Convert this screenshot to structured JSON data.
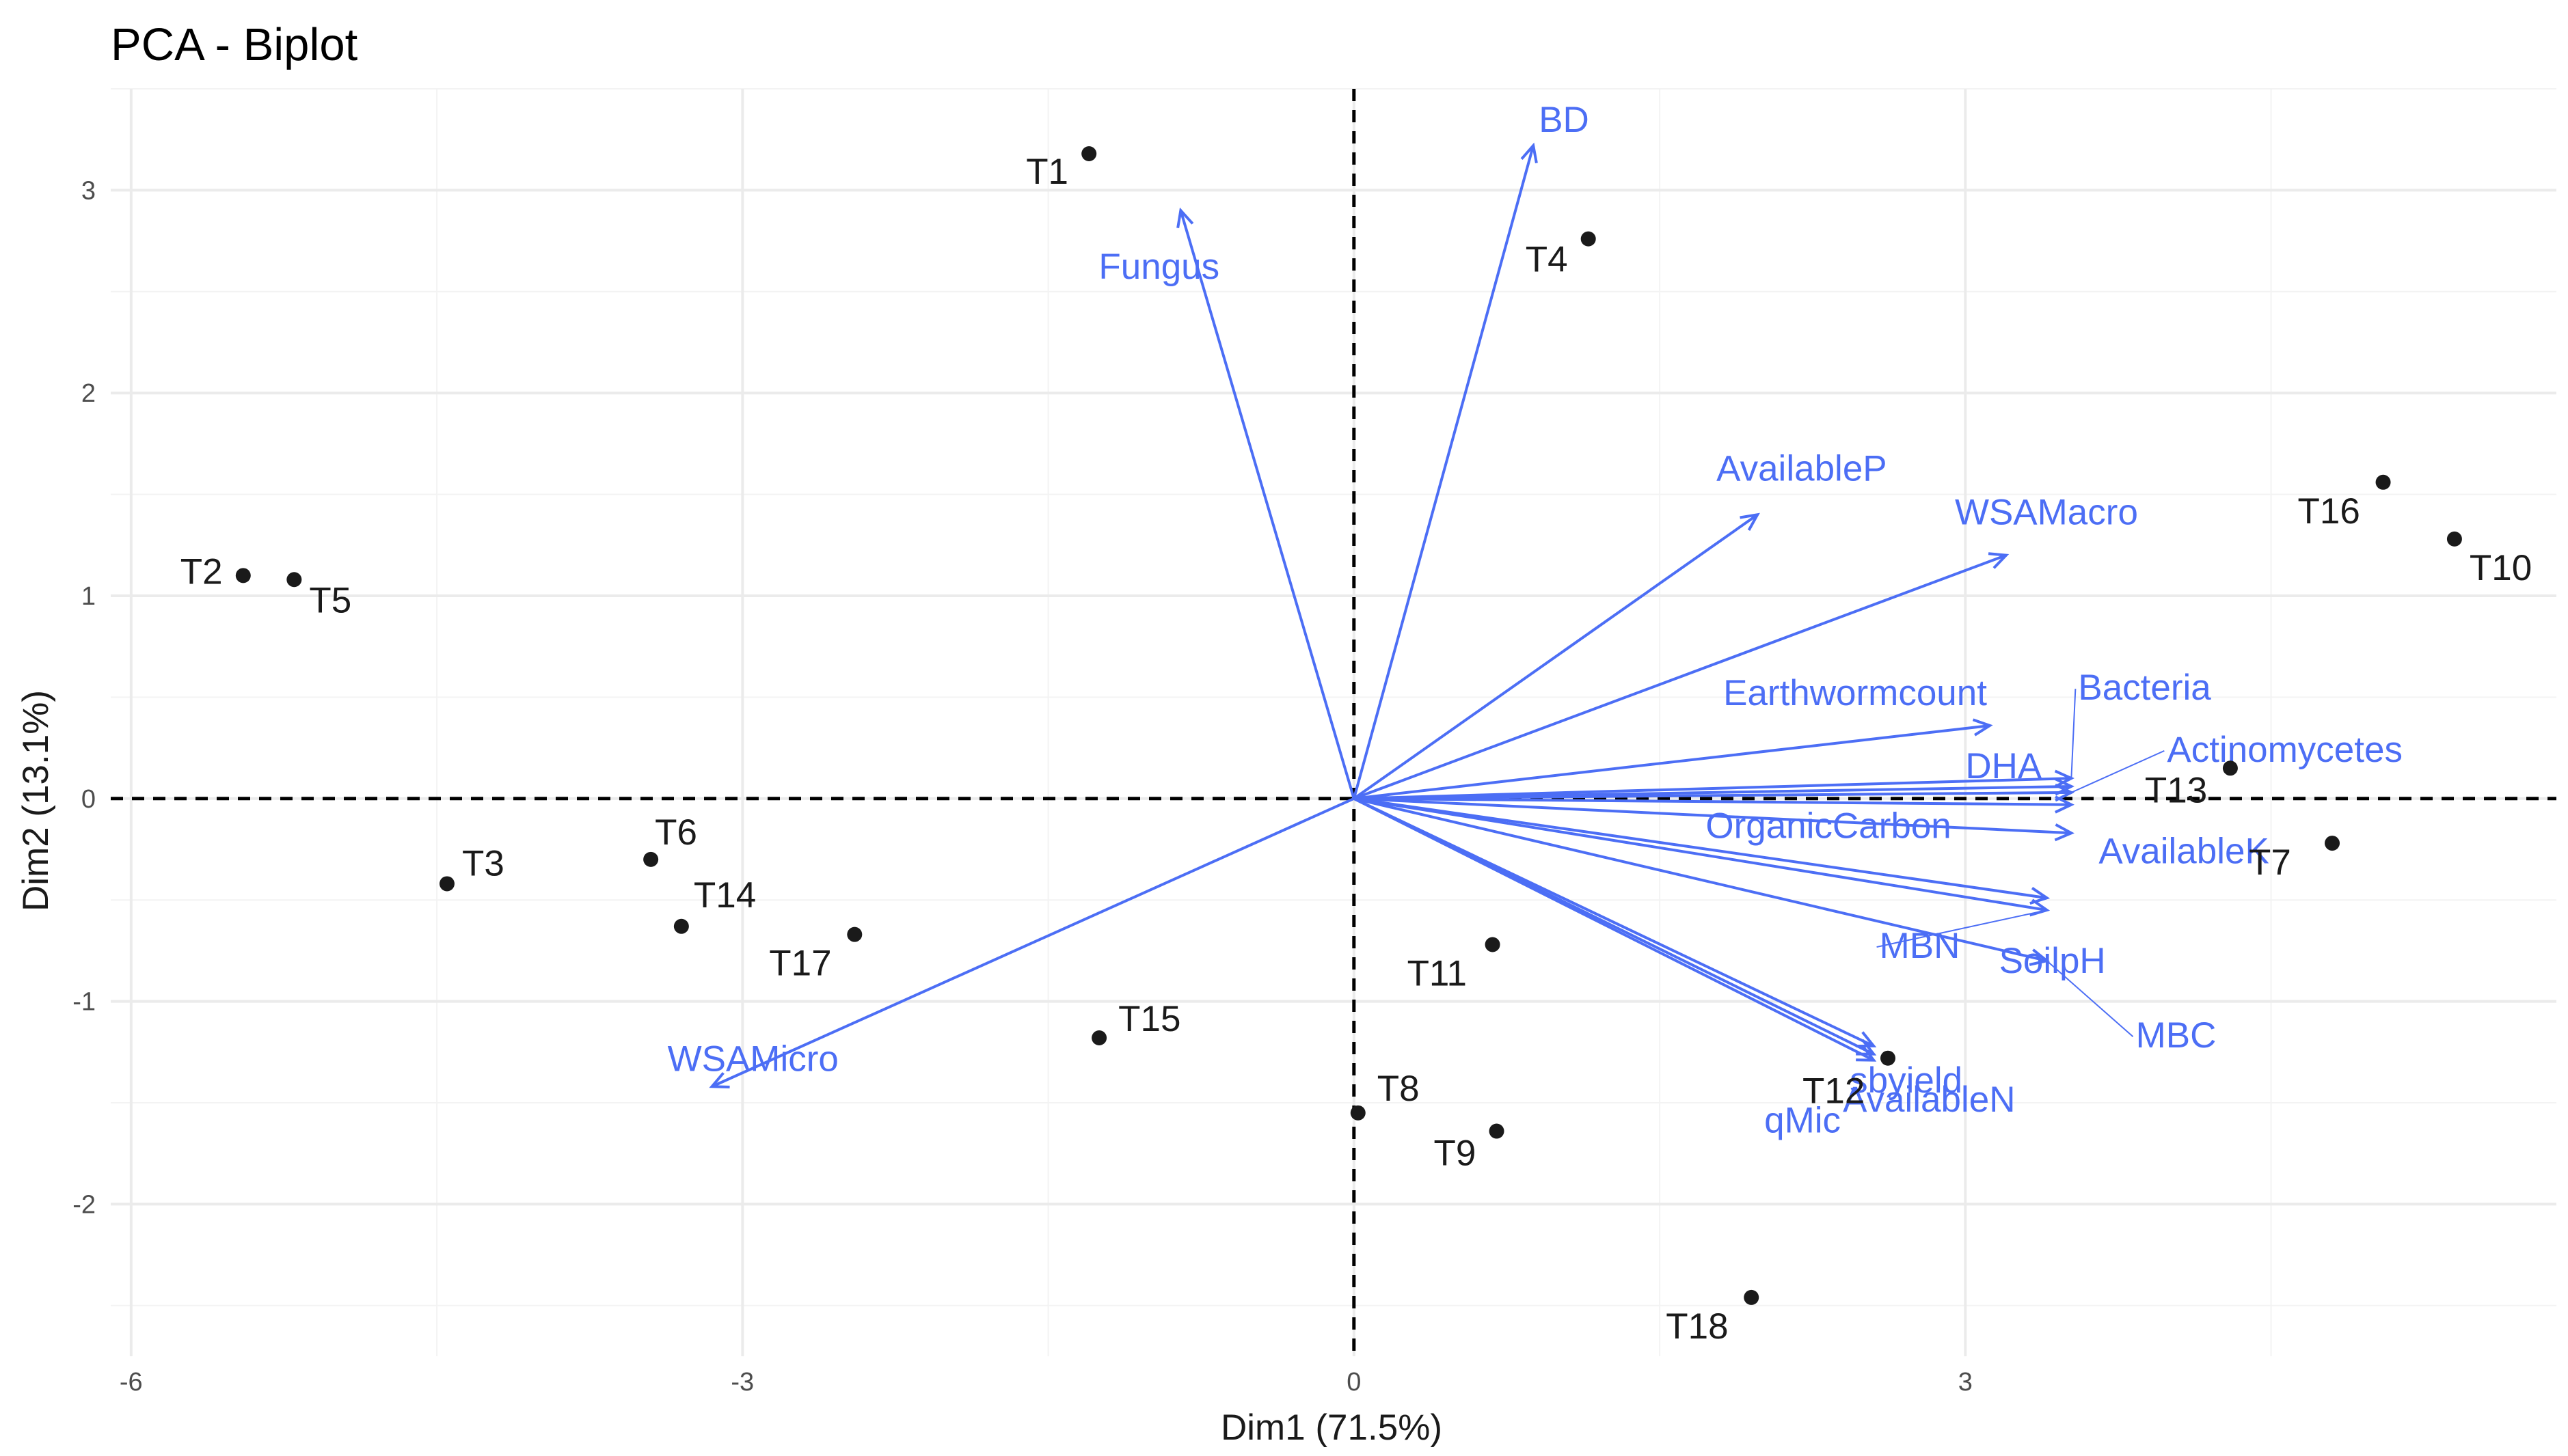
{
  "chart_data": {
    "type": "scatter",
    "title": "PCA - Biplot",
    "xlabel": "Dim1 (71.5%)",
    "ylabel": "Dim2 (13.1%)",
    "xlim": [
      -6.1,
      5.9
    ],
    "ylim": [
      -2.75,
      3.5
    ],
    "x_ticks": [
      -6,
      -3,
      0,
      3
    ],
    "y_ticks": [
      -2,
      -1,
      0,
      1,
      2,
      3
    ],
    "grid": true,
    "reference_lines": {
      "x": 0,
      "y": 0
    },
    "colors": {
      "observations": "#1a1a1a",
      "variables": "#4c6ef5"
    },
    "observations": [
      {
        "name": "T1",
        "x": -1.3,
        "y": 3.18
      },
      {
        "name": "T2",
        "x": -5.45,
        "y": 1.1
      },
      {
        "name": "T3",
        "x": -4.45,
        "y": -0.42
      },
      {
        "name": "T4",
        "x": 1.15,
        "y": 2.76
      },
      {
        "name": "T5",
        "x": -5.2,
        "y": 1.08
      },
      {
        "name": "T6",
        "x": -3.45,
        "y": -0.3
      },
      {
        "name": "T7",
        "x": 4.8,
        "y": -0.22
      },
      {
        "name": "T8",
        "x": 0.02,
        "y": -1.55
      },
      {
        "name": "T9",
        "x": 0.7,
        "y": -1.64
      },
      {
        "name": "T10",
        "x": 5.4,
        "y": 1.28
      },
      {
        "name": "T11",
        "x": 0.68,
        "y": -0.72
      },
      {
        "name": "T12",
        "x": 2.62,
        "y": -1.28
      },
      {
        "name": "T13",
        "x": 4.3,
        "y": 0.15
      },
      {
        "name": "T14",
        "x": -3.3,
        "y": -0.63
      },
      {
        "name": "T15",
        "x": -1.25,
        "y": -1.18
      },
      {
        "name": "T16",
        "x": 5.05,
        "y": 1.56
      },
      {
        "name": "T17",
        "x": -2.45,
        "y": -0.67
      },
      {
        "name": "T18",
        "x": 1.95,
        "y": -2.46
      }
    ],
    "variables": [
      {
        "name": "BD",
        "x": 0.88,
        "y": 3.22
      },
      {
        "name": "Fungus",
        "x": -0.85,
        "y": 2.9
      },
      {
        "name": "AvailableP",
        "x": 1.98,
        "y": 1.4
      },
      {
        "name": "WSAMacro",
        "x": 3.2,
        "y": 1.2
      },
      {
        "name": "Earthwormcount",
        "x": 3.12,
        "y": 0.36
      },
      {
        "name": "Bacteria",
        "x": 3.52,
        "y": 0.1
      },
      {
        "name": "DHA",
        "x": 3.52,
        "y": 0.06
      },
      {
        "name": "Actinomycetes",
        "x": 3.52,
        "y": 0.03
      },
      {
        "name": "OrganicCarbon",
        "x": 3.52,
        "y": -0.03
      },
      {
        "name": "AvailableK",
        "x": 3.52,
        "y": -0.17
      },
      {
        "name": "SoilpH",
        "x": 3.4,
        "y": -0.49
      },
      {
        "name": "MBN",
        "x": 3.4,
        "y": -0.55
      },
      {
        "name": "MBC",
        "x": 3.4,
        "y": -0.8
      },
      {
        "name": "AvailableN",
        "x": 2.55,
        "y": -1.22
      },
      {
        "name": "sbyield",
        "x": 2.55,
        "y": -1.26
      },
      {
        "name": "qMic",
        "x": 2.55,
        "y": -1.29
      },
      {
        "name": "WSAMicro",
        "x": -3.15,
        "y": -1.42
      }
    ]
  }
}
